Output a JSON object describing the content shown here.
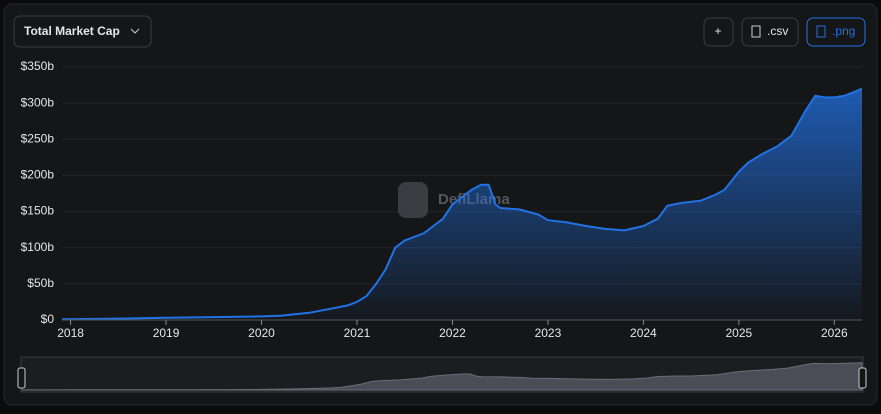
{
  "chart_data": {
    "type": "area",
    "title_button": "Total Market Cap",
    "buttons": [
      "+",
      ".csv",
      ".png"
    ],
    "watermark": "DefiLlama",
    "color": "#2172e5",
    "grid": true,
    "xlim": [
      2017.91,
      2026.29
    ],
    "xticks": [
      2018,
      2019,
      2020,
      2021,
      2022,
      2023,
      2024,
      2025,
      2026
    ],
    "ylim": [
      0,
      350
    ],
    "yticks": [
      {
        "value": 0,
        "label": "$0"
      },
      {
        "value": 50,
        "label": "$50b"
      },
      {
        "value": 100,
        "label": "$100b"
      },
      {
        "value": 150,
        "label": "$150b"
      },
      {
        "value": 200,
        "label": "$200b"
      },
      {
        "value": 250,
        "label": "$250b"
      },
      {
        "value": 300,
        "label": "$300b"
      },
      {
        "value": 350,
        "label": "$350b"
      }
    ],
    "x": [
      2017.91,
      2018.5,
      2019.0,
      2019.5,
      2020.0,
      2020.2,
      2020.5,
      2020.7,
      2020.9,
      2021.0,
      2021.1,
      2021.2,
      2021.3,
      2021.4,
      2021.5,
      2021.7,
      2021.8,
      2021.9,
      2022.0,
      2022.1,
      2022.2,
      2022.3,
      2022.38,
      2022.45,
      2022.5,
      2022.7,
      2022.9,
      2023.0,
      2023.2,
      2023.4,
      2023.6,
      2023.8,
      2024.0,
      2024.15,
      2024.25,
      2024.4,
      2024.6,
      2024.75,
      2024.85,
      2025.0,
      2025.1,
      2025.25,
      2025.4,
      2025.55,
      2025.7,
      2025.8,
      2025.9,
      2026.0,
      2026.1,
      2026.2,
      2026.29
    ],
    "values": [
      1,
      2,
      3,
      4,
      5,
      6,
      10,
      15,
      20,
      25,
      33,
      50,
      70,
      100,
      110,
      120,
      130,
      140,
      160,
      170,
      180,
      187,
      187,
      160,
      155,
      153,
      146,
      138,
      135,
      130,
      126,
      124,
      130,
      140,
      158,
      162,
      165,
      173,
      180,
      205,
      218,
      230,
      240,
      255,
      290,
      310,
      308,
      308,
      310,
      315,
      320
    ]
  }
}
